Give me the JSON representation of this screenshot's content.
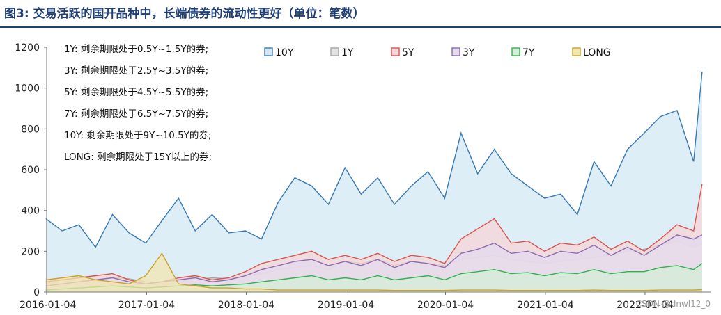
{
  "title": "图3:  交易活跃的国开品种中，长端债券的流动性更好（单位：笔数）",
  "watermark": "CSDN @dnwl12_0",
  "notes": [
    "1Y: 剩余期限处于0.5Y~1.5Y的券;",
    "3Y: 剩余期限处于2.5Y~3.5Y的券;",
    "5Y: 剩余期限处于4.5Y~5.5Y的券;",
    "7Y: 剩余期限处于6.5Y~7.5Y的券;",
    "10Y: 剩余期限处于9Y~10.5Y的券;",
    "LONG: 剩余期限处于15Y以上的券;"
  ],
  "chart_data": {
    "type": "area",
    "title": "",
    "xlabel": "",
    "ylabel": "",
    "ylim": [
      0,
      1200
    ],
    "yticks": [
      0,
      200,
      400,
      600,
      800,
      1000,
      1200
    ],
    "xlim": [
      "2016-01-04",
      "2022-09-01"
    ],
    "xticks": [
      "2016-01-04",
      "2017-01-04",
      "2018-01-04",
      "2019-01-04",
      "2020-01-04",
      "2021-01-04",
      "2022-01-04"
    ],
    "grid": false,
    "legend": "top",
    "x": [
      "2016-01",
      "2016-03",
      "2016-05",
      "2016-07",
      "2016-09",
      "2016-11",
      "2017-01",
      "2017-03",
      "2017-05",
      "2017-07",
      "2017-09",
      "2017-11",
      "2018-01",
      "2018-03",
      "2018-05",
      "2018-07",
      "2018-09",
      "2018-11",
      "2019-01",
      "2019-03",
      "2019-05",
      "2019-07",
      "2019-09",
      "2019-11",
      "2020-01",
      "2020-03",
      "2020-05",
      "2020-07",
      "2020-09",
      "2020-11",
      "2021-01",
      "2021-03",
      "2021-05",
      "2021-07",
      "2021-09",
      "2021-11",
      "2022-01",
      "2022-03",
      "2022-05",
      "2022-07",
      "2022-08"
    ],
    "series": [
      {
        "name": "10Y",
        "color": "#3778b5",
        "fill": "#d3e8f3",
        "values": [
          360,
          300,
          330,
          220,
          380,
          290,
          240,
          350,
          460,
          300,
          380,
          290,
          300,
          260,
          440,
          560,
          520,
          430,
          610,
          480,
          560,
          430,
          520,
          590,
          460,
          780,
          580,
          700,
          580,
          520,
          460,
          480,
          380,
          640,
          520,
          700,
          780,
          860,
          890,
          640,
          1080
        ]
      },
      {
        "name": "1Y",
        "color": "#a6a6a6",
        "fill": "#e3e3e3",
        "values": [
          40,
          50,
          60,
          55,
          70,
          65,
          50,
          45,
          55,
          60,
          70,
          65,
          80,
          90,
          110,
          120,
          130,
          110,
          150,
          140,
          160,
          130,
          150,
          140,
          130,
          160,
          170,
          180,
          160,
          150,
          140,
          150,
          160,
          170,
          180,
          200,
          210,
          230,
          250,
          220,
          240
        ]
      },
      {
        "name": "5Y",
        "color": "#d9534f",
        "fill": "#f5d5d5",
        "values": [
          50,
          60,
          70,
          80,
          90,
          60,
          40,
          50,
          70,
          80,
          60,
          70,
          100,
          140,
          160,
          180,
          200,
          160,
          180,
          160,
          190,
          150,
          180,
          170,
          140,
          260,
          310,
          360,
          240,
          250,
          200,
          240,
          230,
          270,
          210,
          250,
          200,
          260,
          330,
          300,
          530
        ]
      },
      {
        "name": "3Y",
        "color": "#8b6cb0",
        "fill": "#e4dbef",
        "values": [
          30,
          40,
          50,
          60,
          70,
          50,
          40,
          50,
          60,
          70,
          50,
          60,
          80,
          110,
          130,
          150,
          160,
          130,
          150,
          130,
          160,
          120,
          150,
          140,
          120,
          190,
          210,
          240,
          190,
          200,
          170,
          200,
          190,
          230,
          180,
          220,
          180,
          230,
          280,
          260,
          280
        ]
      },
      {
        "name": "7Y",
        "color": "#2fb34e",
        "fill": "#d4efd8",
        "values": [
          10,
          15,
          20,
          25,
          30,
          25,
          20,
          25,
          30,
          35,
          30,
          35,
          40,
          50,
          60,
          70,
          80,
          60,
          70,
          60,
          80,
          60,
          70,
          80,
          60,
          90,
          100,
          110,
          90,
          95,
          80,
          95,
          90,
          110,
          90,
          100,
          100,
          120,
          130,
          110,
          140
        ]
      },
      {
        "name": "LONG",
        "color": "#c9a227",
        "fill": "#f2e6b0",
        "values": [
          60,
          70,
          80,
          60,
          50,
          40,
          80,
          190,
          40,
          30,
          20,
          20,
          15,
          15,
          10,
          10,
          10,
          10,
          10,
          10,
          10,
          8,
          8,
          8,
          8,
          10,
          10,
          10,
          8,
          8,
          8,
          8,
          8,
          10,
          8,
          8,
          8,
          10,
          10,
          10,
          12
        ]
      }
    ]
  }
}
